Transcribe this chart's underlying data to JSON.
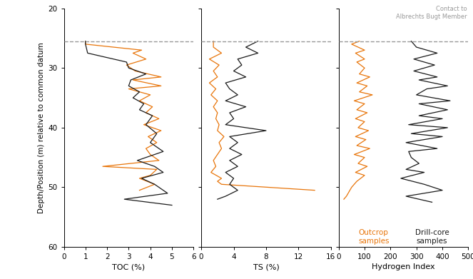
{
  "ylabel": "Depth/Position (m) relative to common datum",
  "ylim": [
    60,
    20
  ],
  "yticks": [
    20,
    30,
    40,
    50,
    60
  ],
  "datum_line": 25.5,
  "datum_label": "Contact to\nAlbrechts Bugt Member",
  "orange_color": "#E8750A",
  "black_color": "#1a1a1a",
  "panels": [
    {
      "xlabel": "TOC (%)",
      "xlim": [
        0,
        6
      ],
      "xticks": [
        0,
        1,
        2,
        3,
        4,
        5,
        6
      ],
      "orange_depth": [
        25.5,
        26.0,
        27.0,
        27.5,
        28.5,
        29.5,
        30.5,
        31.5,
        32.0,
        33.0,
        33.5,
        34.5,
        35.5,
        36.5,
        37.5,
        38.5,
        39.5,
        40.5,
        41.5,
        42.5,
        43.5,
        44.5,
        45.5,
        46.5,
        47.0,
        48.0,
        48.5,
        49.5,
        50.5
      ],
      "orange_vals": [
        1.0,
        1.0,
        3.6,
        3.2,
        3.8,
        2.9,
        3.3,
        4.5,
        3.2,
        4.5,
        3.0,
        4.0,
        3.5,
        4.1,
        3.8,
        4.4,
        3.7,
        4.5,
        3.9,
        4.3,
        3.8,
        4.0,
        4.4,
        1.8,
        4.3,
        4.0,
        3.5,
        4.2,
        3.5
      ],
      "black_depth": [
        25.5,
        26.0,
        27.5,
        29.0,
        30.0,
        31.0,
        32.0,
        33.0,
        34.0,
        35.0,
        36.0,
        37.0,
        38.0,
        39.5,
        41.0,
        42.5,
        44.0,
        45.5,
        46.5,
        47.5,
        48.5,
        49.5,
        51.0,
        52.0,
        53.0
      ],
      "black_vals": [
        1.0,
        1.0,
        1.1,
        2.9,
        3.0,
        3.8,
        3.1,
        3.0,
        3.5,
        3.2,
        3.7,
        3.5,
        4.1,
        3.8,
        4.3,
        4.0,
        4.6,
        3.4,
        4.2,
        4.6,
        3.6,
        4.2,
        4.8,
        2.8,
        5.0
      ]
    },
    {
      "xlabel": "TS (%)",
      "xlim": [
        0,
        16
      ],
      "xticks": [
        0,
        4,
        8,
        12,
        16
      ],
      "orange_depth": [
        25.5,
        26.5,
        27.5,
        28.5,
        29.5,
        30.5,
        31.5,
        32.5,
        33.5,
        34.5,
        35.5,
        36.5,
        37.5,
        38.5,
        39.5,
        40.5,
        41.5,
        42.5,
        43.5,
        44.5,
        45.5,
        46.5,
        47.5,
        48.5,
        49.0,
        49.5,
        50.5
      ],
      "orange_vals": [
        1.5,
        1.5,
        2.5,
        1.0,
        2.2,
        1.5,
        2.0,
        1.0,
        1.8,
        1.2,
        2.0,
        1.5,
        2.0,
        1.8,
        2.2,
        2.0,
        2.8,
        2.2,
        2.5,
        2.0,
        1.5,
        1.8,
        1.2,
        2.5,
        2.0,
        2.5,
        14.0
      ],
      "black_depth": [
        25.5,
        26.5,
        27.5,
        28.5,
        29.5,
        30.5,
        31.5,
        32.5,
        33.5,
        34.5,
        35.5,
        36.5,
        37.5,
        38.5,
        39.5,
        40.5,
        41.5,
        42.5,
        43.5,
        44.5,
        45.5,
        46.5,
        47.5,
        48.5,
        49.5,
        50.5,
        51.5,
        52.0
      ],
      "black_vals": [
        7.0,
        5.5,
        7.0,
        4.5,
        5.0,
        4.0,
        5.5,
        3.0,
        3.5,
        4.5,
        3.0,
        5.5,
        3.5,
        4.0,
        3.0,
        8.0,
        3.5,
        4.5,
        3.5,
        5.0,
        3.5,
        4.5,
        3.0,
        4.0,
        3.5,
        4.5,
        3.0,
        2.0
      ]
    },
    {
      "xlabel": "Hydrogen Index",
      "xlim": [
        0,
        500
      ],
      "xticks": [
        0,
        100,
        200,
        300,
        400,
        500
      ],
      "orange_depth": [
        25.5,
        26.0,
        27.0,
        27.5,
        28.5,
        29.0,
        30.0,
        31.0,
        31.5,
        32.5,
        33.0,
        34.0,
        34.5,
        35.5,
        36.0,
        37.0,
        37.5,
        38.5,
        39.0,
        40.0,
        40.5,
        41.5,
        42.0,
        43.0,
        43.5,
        44.5,
        45.0,
        46.0,
        46.5,
        47.5,
        48.0,
        49.0,
        50.0,
        51.5,
        52.0
      ],
      "orange_vals": [
        80,
        50,
        100,
        65,
        100,
        70,
        100,
        80,
        120,
        70,
        110,
        80,
        130,
        60,
        100,
        70,
        110,
        65,
        100,
        75,
        115,
        65,
        105,
        70,
        120,
        60,
        100,
        75,
        110,
        65,
        100,
        70,
        50,
        30,
        20
      ],
      "black_depth": [
        25.5,
        26.5,
        27.5,
        28.5,
        29.5,
        30.5,
        31.5,
        32.0,
        33.0,
        33.5,
        34.5,
        35.5,
        36.0,
        37.0,
        38.0,
        38.5,
        39.5,
        40.0,
        41.0,
        41.5,
        42.5,
        43.5,
        44.0,
        45.0,
        46.0,
        47.0,
        47.5,
        48.5,
        49.5,
        50.5,
        51.5,
        52.5
      ],
      "black_vals": [
        280,
        300,
        380,
        290,
        370,
        290,
        380,
        310,
        420,
        340,
        300,
        430,
        310,
        420,
        310,
        400,
        270,
        420,
        280,
        400,
        260,
        380,
        270,
        280,
        310,
        260,
        330,
        240,
        330,
        400,
        260,
        360
      ]
    }
  ],
  "legend_panel": 2,
  "legend_orange": "Outcrop\nsamples",
  "legend_black": "Drill-core\nsamples"
}
